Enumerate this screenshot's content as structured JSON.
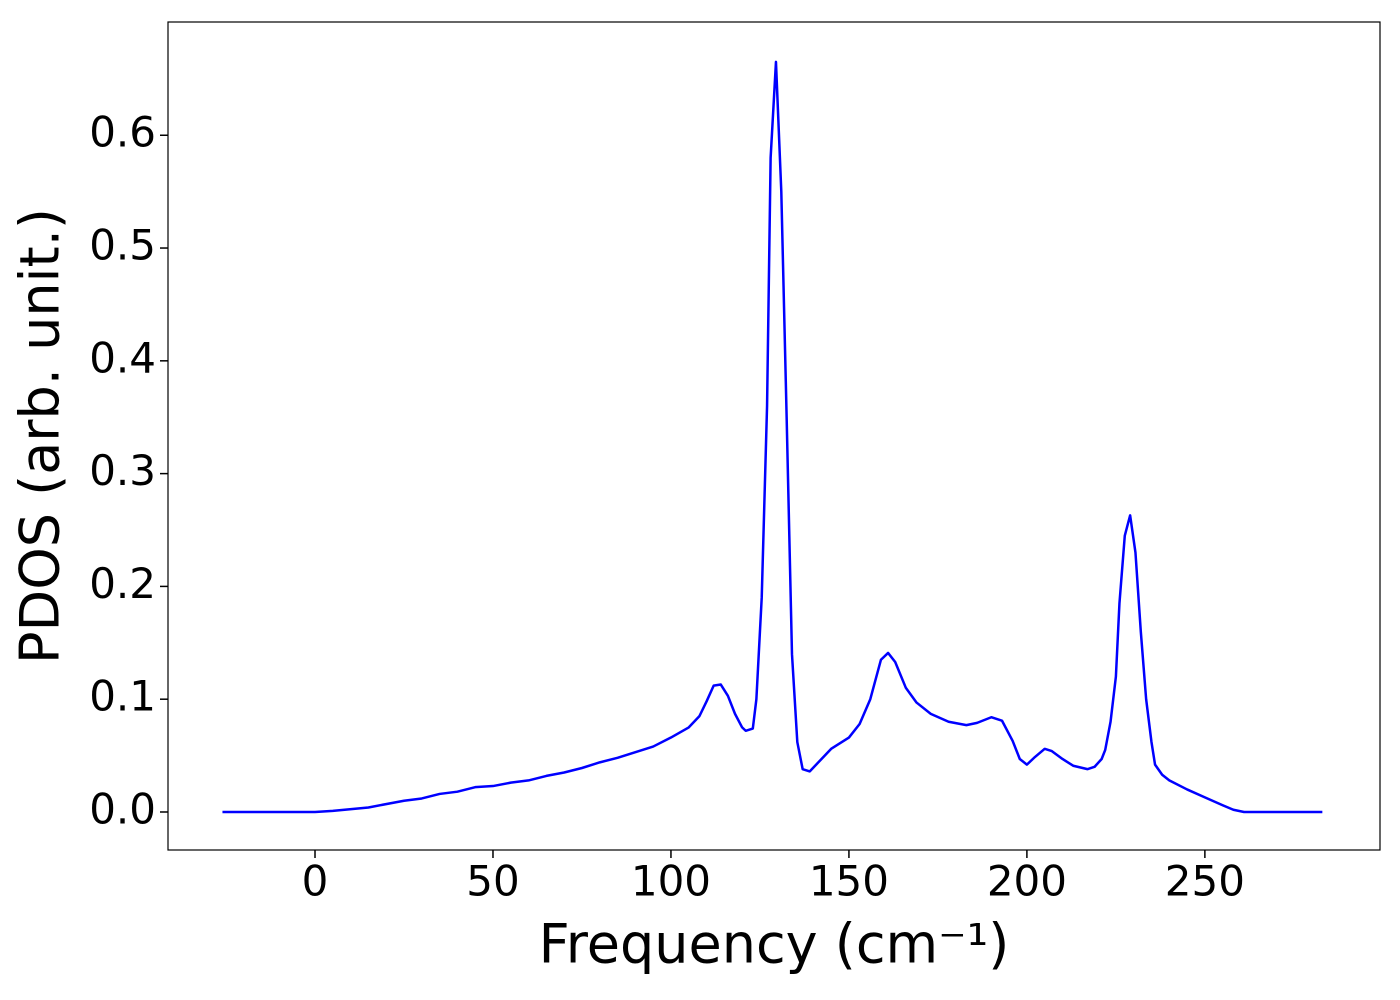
{
  "chart_data": {
    "type": "line",
    "xlabel": "Frequency (cm⁻¹)",
    "ylabel": "PDOS (arb. unit.)",
    "color": "#0000ff",
    "x": [
      -26,
      0,
      5,
      15,
      25,
      30,
      35,
      40,
      45,
      50,
      55,
      60,
      65,
      70,
      75,
      80,
      85,
      90,
      95,
      100,
      105,
      108,
      110,
      112,
      114,
      116,
      118,
      120,
      121,
      123,
      124,
      125.5,
      127,
      128,
      129.5,
      131,
      132.5,
      134,
      135.5,
      137,
      139,
      142,
      145,
      150,
      153,
      156,
      159,
      161,
      163,
      166,
      169,
      173,
      178,
      183,
      186,
      190,
      193,
      196,
      198,
      200,
      202,
      205,
      207,
      210,
      213,
      217,
      219,
      221,
      222,
      223.5,
      225,
      226,
      227.5,
      229,
      230.5,
      232,
      233.5,
      235,
      236,
      238,
      240,
      245,
      250,
      255,
      258,
      261,
      283
    ],
    "values": [
      0,
      0,
      0.001,
      0.004,
      0.01,
      0.012,
      0.016,
      0.018,
      0.022,
      0.023,
      0.026,
      0.028,
      0.032,
      0.035,
      0.039,
      0.044,
      0.048,
      0.053,
      0.058,
      0.066,
      0.075,
      0.085,
      0.098,
      0.112,
      0.113,
      0.103,
      0.087,
      0.075,
      0.072,
      0.074,
      0.1,
      0.19,
      0.36,
      0.58,
      0.665,
      0.55,
      0.35,
      0.14,
      0.062,
      0.038,
      0.036,
      0.046,
      0.056,
      0.066,
      0.078,
      0.1,
      0.135,
      0.141,
      0.133,
      0.11,
      0.097,
      0.087,
      0.08,
      0.077,
      0.079,
      0.084,
      0.081,
      0.063,
      0.047,
      0.042,
      0.048,
      0.056,
      0.054,
      0.047,
      0.041,
      0.038,
      0.04,
      0.047,
      0.055,
      0.08,
      0.12,
      0.185,
      0.245,
      0.263,
      0.23,
      0.16,
      0.1,
      0.062,
      0.042,
      0.033,
      0.028,
      0.02,
      0.013,
      0.006,
      0.002,
      0,
      0
    ],
    "xlim": [
      -41.3,
      299.2
    ],
    "ylim": [
      -0.0337,
      0.7004
    ],
    "xticks": [
      0,
      50,
      100,
      150,
      200,
      250
    ],
    "yticks": [
      {
        "value": 0,
        "label": "0.0"
      },
      0.1,
      0.2,
      0.3,
      0.4,
      0.5,
      0.6
    ]
  }
}
